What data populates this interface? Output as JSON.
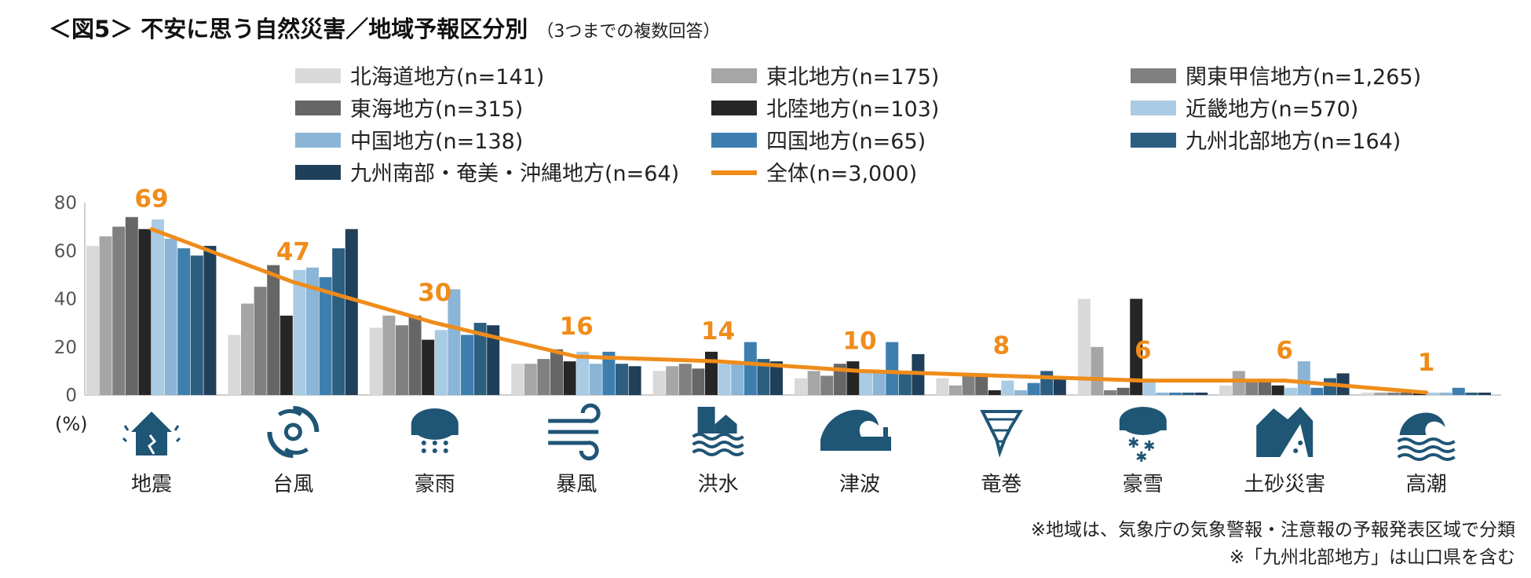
{
  "title": "＜図5＞ 不安に思う自然災害／地域予報区分別",
  "subtitle": "（3つまでの複数回答）",
  "chart_data": {
    "type": "bar",
    "ylabel": "(%)",
    "ylim": [
      0,
      80
    ],
    "yticks": [
      0,
      20,
      40,
      60,
      80
    ],
    "categories": [
      "地震",
      "台風",
      "豪雨",
      "暴風",
      "洪水",
      "津波",
      "竜巻",
      "豪雪",
      "土砂災害",
      "高潮"
    ],
    "icons": [
      "house-earthquake-icon",
      "typhoon-icon",
      "heavy-rain-icon",
      "strong-wind-icon",
      "flood-icon",
      "tsunami-icon",
      "tornado-icon",
      "heavy-snow-icon",
      "landslide-icon",
      "storm-surge-icon"
    ],
    "series": [
      {
        "name": "北海道地方(n=141)",
        "color": "#D9D9D9",
        "values": [
          62,
          25,
          28,
          13,
          10,
          7,
          7,
          40,
          4,
          1
        ]
      },
      {
        "name": "東北地方(n=175)",
        "color": "#A6A6A6",
        "values": [
          66,
          38,
          33,
          13,
          12,
          10,
          4,
          20,
          10,
          1
        ]
      },
      {
        "name": "関東甲信地方(n=1,265)",
        "color": "#808080",
        "values": [
          70,
          45,
          29,
          15,
          13,
          8,
          9,
          2,
          6,
          1
        ]
      },
      {
        "name": "東海地方(n=315)",
        "color": "#666666",
        "values": [
          74,
          54,
          33,
          19,
          11,
          13,
          9,
          3,
          6,
          1
        ]
      },
      {
        "name": "北陸地方(n=103)",
        "color": "#262626",
        "values": [
          69,
          33,
          23,
          14,
          18,
          14,
          2,
          40,
          4,
          1
        ]
      },
      {
        "name": "近畿地方(n=570)",
        "color": "#A9CBE4",
        "values": [
          73,
          52,
          27,
          18,
          13,
          10,
          6,
          6,
          3,
          1
        ]
      },
      {
        "name": "中国地方(n=138)",
        "color": "#8BB5D6",
        "values": [
          65,
          53,
          44,
          13,
          13,
          10,
          2,
          1,
          14,
          1
        ]
      },
      {
        "name": "四国地方(n=65)",
        "color": "#3E7EAF",
        "values": [
          61,
          49,
          25,
          18,
          22,
          22,
          5,
          1,
          3,
          3
        ]
      },
      {
        "name": "九州北部地方(n=164)",
        "color": "#2C5E80",
        "values": [
          58,
          61,
          30,
          13,
          15,
          10,
          10,
          1,
          7,
          1
        ]
      },
      {
        "name": "九州南部・奄美・沖縄地方(n=64)",
        "color": "#1F3F5A",
        "values": [
          62,
          69,
          29,
          12,
          14,
          17,
          7,
          1,
          9,
          1
        ]
      }
    ],
    "line": {
      "name": "全体(n=3,000)",
      "color": "#EF8C1A",
      "values": [
        69,
        47,
        30,
        16,
        14,
        10,
        8,
        6,
        6,
        1
      ]
    },
    "grid": false,
    "legend_position": "top"
  },
  "notes": [
    "※地域は、気象庁の気象警報・注意報の予報発表区域で分類",
    "※「九州北部地方」は山口県を含む"
  ]
}
